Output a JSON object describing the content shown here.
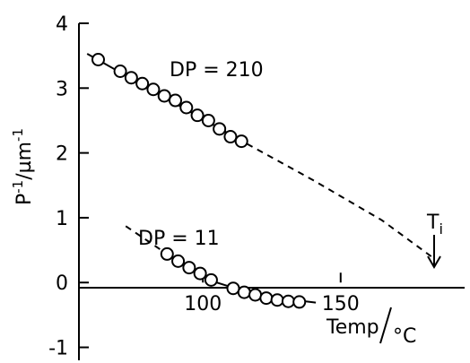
{
  "chart_data": {
    "type": "line",
    "title": "",
    "ylabel": {
      "base": "P",
      "sup1": "-1",
      "sep": "/µm",
      "sup2": "-1"
    },
    "xlabel": {
      "a": "Temp",
      "b": "°C"
    },
    "xlim": [
      55,
      195
    ],
    "ylim": [
      -1.2,
      4
    ],
    "x_ticks": [
      {
        "value": 100,
        "label": "100"
      },
      {
        "value": 150,
        "label": "150"
      }
    ],
    "y_ticks": [
      {
        "value": 4,
        "label": "4"
      },
      {
        "value": 3,
        "label": "3"
      },
      {
        "value": 2,
        "label": "2"
      },
      {
        "value": 1,
        "label": "1"
      },
      {
        "value": 0,
        "label": "0"
      },
      {
        "value": -1,
        "label": "-1"
      }
    ],
    "series": [
      {
        "name": "DP = 210",
        "points": [
          [
            62,
            3.44
          ],
          [
            70,
            3.26
          ],
          [
            74,
            3.16
          ],
          [
            78,
            3.07
          ],
          [
            82,
            2.98
          ],
          [
            86,
            2.88
          ],
          [
            90,
            2.81
          ],
          [
            94,
            2.7
          ],
          [
            98,
            2.58
          ],
          [
            102,
            2.5
          ],
          [
            106,
            2.37
          ],
          [
            110,
            2.25
          ],
          [
            114,
            2.18
          ]
        ],
        "solid_line": [
          [
            58,
            3.53
          ],
          [
            116,
            2.14
          ]
        ],
        "dashed_line": [
          [
            116,
            2.14
          ],
          [
            140,
            1.58
          ],
          [
            165,
            0.96
          ],
          [
            183,
            0.4
          ]
        ]
      },
      {
        "name": "DP = 11",
        "points": [
          [
            87,
            0.44
          ],
          [
            91,
            0.33
          ],
          [
            95,
            0.23
          ],
          [
            99,
            0.14
          ],
          [
            103,
            0.04
          ],
          [
            111,
            -0.09
          ],
          [
            115,
            -0.15
          ],
          [
            119,
            -0.19
          ],
          [
            123,
            -0.24
          ],
          [
            127,
            -0.27
          ],
          [
            131,
            -0.29
          ],
          [
            135,
            -0.3
          ]
        ],
        "dashed_line": [
          [
            72,
            0.87
          ],
          [
            87,
            0.44
          ]
        ],
        "solid_line": [
          [
            87,
            0.44
          ],
          [
            105,
            0.0
          ],
          [
            120,
            -0.2
          ],
          [
            141,
            -0.31
          ]
        ]
      }
    ],
    "annotations": [
      {
        "text": "T",
        "sub": "i",
        "at": [
          183,
          0.4
        ]
      }
    ]
  }
}
